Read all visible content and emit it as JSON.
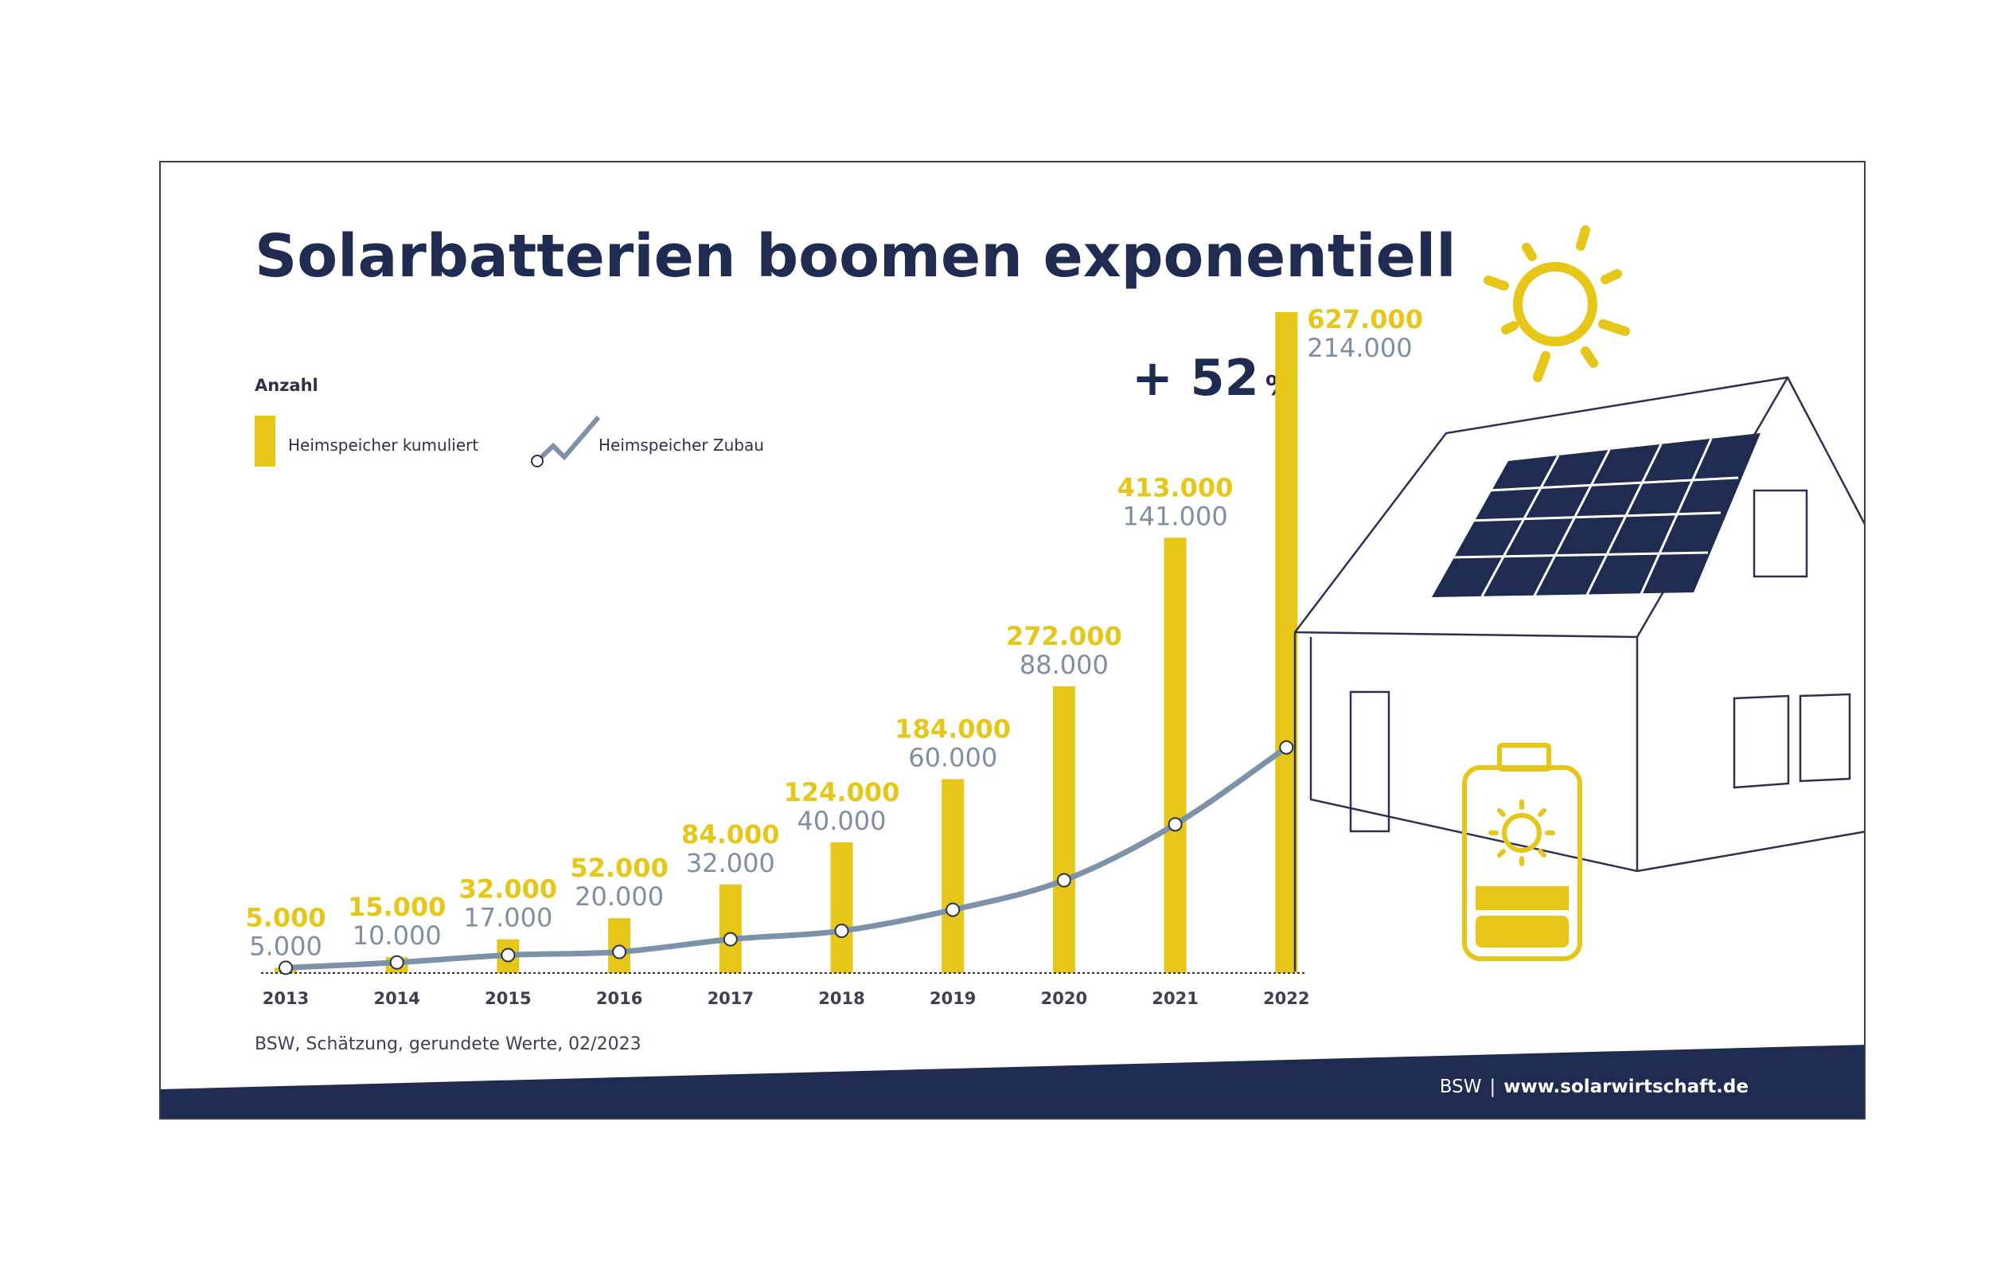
{
  "title": "Solarbatterien boomen exponentiell",
  "legend": {
    "heading": "Anzahl",
    "bar_label": "Heimspeicher kumuliert",
    "line_label": "Heimspeicher Zubau"
  },
  "growth_label": "+ 52",
  "growth_unit": "%",
  "source": "BSW, Schätzung, gerundete Werte, 02/2023",
  "footer": {
    "brand": "BSW",
    "separator": "|",
    "url": "www.solarwirtschaft.de"
  },
  "colors": {
    "bar": "#e6c619",
    "line": "#7b92a8",
    "navy": "#1f2b50",
    "text_gray": "#7e8ea3"
  },
  "chart_data": {
    "type": "bar",
    "categories": [
      "2013",
      "2014",
      "2015",
      "2016",
      "2017",
      "2018",
      "2019",
      "2020",
      "2021",
      "2022"
    ],
    "series": [
      {
        "name": "Heimspeicher kumuliert",
        "type": "bar",
        "values": [
          5000,
          15000,
          32000,
          52000,
          84000,
          124000,
          184000,
          272000,
          413000,
          627000
        ],
        "labels": [
          "5.000",
          "15.000",
          "32.000",
          "52.000",
          "84.000",
          "124.000",
          "184.000",
          "272.000",
          "413.000",
          "627.000"
        ]
      },
      {
        "name": "Heimspeicher Zubau",
        "type": "line",
        "values": [
          5000,
          10000,
          17000,
          20000,
          32000,
          40000,
          60000,
          88000,
          141000,
          214000
        ],
        "labels": [
          "5.000",
          "10.000",
          "17.000",
          "20.000",
          "32.000",
          "40.000",
          "60.000",
          "88.000",
          "141.000",
          "214.000"
        ]
      }
    ],
    "ylim": [
      0,
      627000
    ],
    "legend_position": "top-left",
    "grid": false
  }
}
